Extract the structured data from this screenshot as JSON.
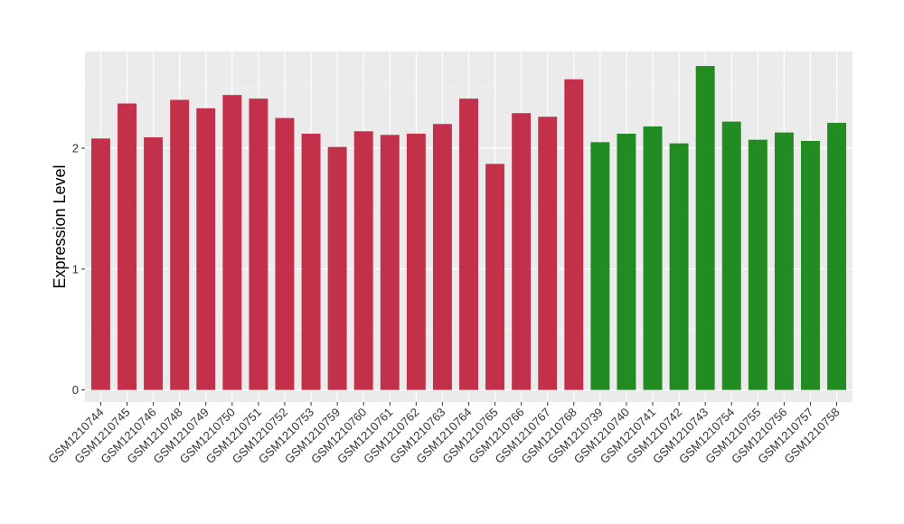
{
  "chart_data": {
    "type": "bar",
    "title": "",
    "xlabel": "",
    "ylabel": "Expression Level",
    "ylim": [
      -0.1,
      2.8
    ],
    "yticks": [
      0,
      1,
      2
    ],
    "grid": true,
    "legend": "none",
    "colors": {
      "red_group": "#C3304A",
      "green_group": "#228B22",
      "panel_bg": "#EBEBEB",
      "grid": "#FFFFFF"
    },
    "categories": [
      "GSM1210744",
      "GSM1210745",
      "GSM1210746",
      "GSM1210748",
      "GSM1210749",
      "GSM1210750",
      "GSM1210751",
      "GSM1210752",
      "GSM1210753",
      "GSM1210759",
      "GSM1210760",
      "GSM1210761",
      "GSM1210762",
      "GSM1210763",
      "GSM1210764",
      "GSM1210765",
      "GSM1210766",
      "GSM1210767",
      "GSM1210768",
      "GSM1210739",
      "GSM1210740",
      "GSM1210741",
      "GSM1210742",
      "GSM1210743",
      "GSM1210754",
      "GSM1210755",
      "GSM1210756",
      "GSM1210757",
      "GSM1210758"
    ],
    "values": [
      2.08,
      2.37,
      2.09,
      2.4,
      2.33,
      2.44,
      2.41,
      2.25,
      2.12,
      2.01,
      2.14,
      2.11,
      2.12,
      2.2,
      2.41,
      1.87,
      2.29,
      2.26,
      2.57,
      2.05,
      2.12,
      2.18,
      2.04,
      2.68,
      2.22,
      2.07,
      2.13,
      2.06,
      2.21
    ],
    "groups": [
      "red",
      "red",
      "red",
      "red",
      "red",
      "red",
      "red",
      "red",
      "red",
      "red",
      "red",
      "red",
      "red",
      "red",
      "red",
      "red",
      "red",
      "red",
      "red",
      "green",
      "green",
      "green",
      "green",
      "green",
      "green",
      "green",
      "green",
      "green",
      "green"
    ]
  }
}
